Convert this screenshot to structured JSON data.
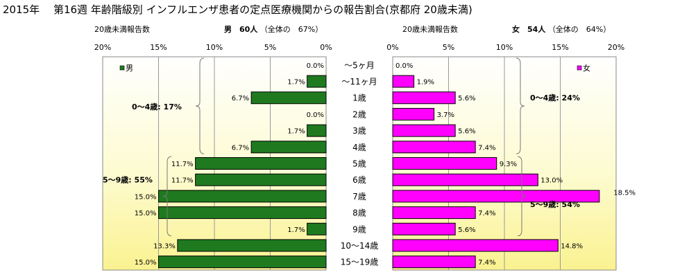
{
  "title": "2015年　 第16週 年齢階級別 インフルエンザ患者の定点医療機関からの報告割合(京都府 20歳未満)",
  "male": {
    "count_label": "20歳未満報告数",
    "header": "男　60人",
    "share": "（全体の　67%）",
    "legend": "男",
    "bracket_young": "0～4歳: 17%",
    "bracket_school": "5～9歳: 55%",
    "color": "#1f7a1f"
  },
  "female": {
    "count_label": "20歳未満報告数",
    "header": "女　54人",
    "share": "（全体の　64%）",
    "legend": "女",
    "bracket_young": "0～4歳: 24%",
    "bracket_school": "5～9歳: 54%",
    "color": "#ff00ff"
  },
  "chart_data": {
    "type": "bar",
    "orientation": "horizontal",
    "layout": "population-pyramid",
    "categories": [
      "～5ヶ月",
      "～11ヶ月",
      "1歳",
      "2歳",
      "3歳",
      "4歳",
      "5歳",
      "6歳",
      "7歳",
      "8歳",
      "9歳",
      "10～14歳",
      "15～19歳"
    ],
    "series": [
      {
        "name": "男",
        "side": "left",
        "values": [
          0.0,
          1.7,
          6.7,
          0.0,
          1.7,
          6.7,
          11.7,
          11.7,
          15.0,
          15.0,
          1.7,
          13.3,
          15.0
        ],
        "labels": [
          "0.0%",
          "1.7%",
          "6.7%",
          "0.0%",
          "1.7%",
          "6.7%",
          "11.7%",
          "11.7%",
          "15.0%",
          "15.0%",
          "1.7%",
          "13.3%",
          "15.0%"
        ]
      },
      {
        "name": "女",
        "side": "right",
        "values": [
          0.0,
          1.9,
          5.6,
          3.7,
          5.6,
          7.4,
          9.3,
          13.0,
          18.5,
          7.4,
          5.6,
          14.8,
          7.4
        ],
        "labels": [
          "0.0%",
          "1.9%",
          "5.6%",
          "3.7%",
          "5.6%",
          "7.4%",
          "9.3%",
          "13.0%",
          "18.5%",
          "7.4%",
          "5.6%",
          "14.8%",
          "7.4%"
        ]
      }
    ],
    "xlim": [
      0,
      20
    ],
    "ticks": [
      20,
      15,
      10,
      5,
      0
    ],
    "tick_labels_left": [
      "20%",
      "15%",
      "10%",
      "5%",
      "0%"
    ],
    "tick_labels_right": [
      "0%",
      "5%",
      "10%",
      "15%",
      "20%"
    ],
    "grid": true,
    "legend": "top-left (男), top-right (女)"
  }
}
